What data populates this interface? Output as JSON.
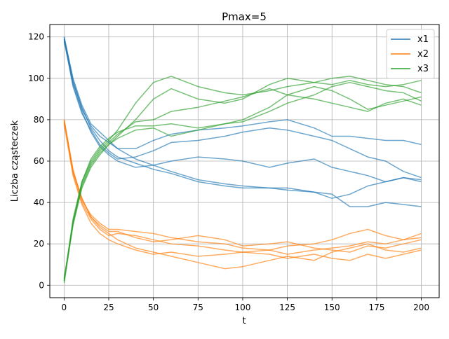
{
  "chart_data": {
    "type": "line",
    "title": "Pmax=5",
    "xlabel": "t",
    "ylabel": "Liczba cząsteczek",
    "xlim": [
      -8,
      210
    ],
    "ylim": [
      -6,
      126
    ],
    "xticks": [
      0,
      25,
      50,
      75,
      100,
      125,
      150,
      175,
      200
    ],
    "yticks": [
      0,
      20,
      40,
      60,
      80,
      100,
      120
    ],
    "grid": true,
    "legend_position": "top-right",
    "legend": [
      "x1",
      "x2",
      "x3"
    ],
    "colors": {
      "x1": "#1f77b4",
      "x2": "#ff7f0e",
      "x3": "#2ca02c"
    },
    "series": [
      {
        "name": "x1",
        "color": "#1f77b4",
        "runs": [
          {
            "x": [
              0,
              5,
              10,
              15,
              20,
              25,
              30,
              40,
              50,
              60,
              75,
              90,
              100,
              115,
              125,
              140,
              150,
              160,
              170,
              180,
              190,
              200
            ],
            "y": [
              120,
              100,
              87,
              78,
              74,
              70,
              66,
              61,
              58,
              55,
              51,
              49,
              48,
              47,
              47,
              45,
              42,
              44,
              48,
              50,
              52,
              51
            ]
          },
          {
            "x": [
              0,
              5,
              10,
              15,
              20,
              25,
              30,
              40,
              50,
              60,
              75,
              90,
              100,
              115,
              125,
              140,
              150,
              160,
              170,
              180,
              190,
              200
            ],
            "y": [
              119,
              98,
              86,
              76,
              70,
              65,
              62,
              59,
              56,
              54,
              50,
              48,
              47,
              47,
              46,
              45,
              44,
              38,
              38,
              40,
              39,
              38
            ]
          },
          {
            "x": [
              0,
              5,
              10,
              15,
              20,
              25,
              30,
              40,
              50,
              60,
              75,
              90,
              100,
              115,
              125,
              140,
              150,
              160,
              170,
              180,
              190,
              200
            ],
            "y": [
              118,
              97,
              84,
              74,
              67,
              63,
              60,
              57,
              58,
              60,
              62,
              61,
              60,
              57,
              59,
              61,
              57,
              55,
              53,
              50,
              52,
              50
            ]
          },
          {
            "x": [
              0,
              5,
              10,
              15,
              20,
              25,
              30,
              40,
              50,
              60,
              75,
              90,
              100,
              115,
              125,
              140,
              150,
              160,
              170,
              180,
              190,
              200
            ],
            "y": [
              120,
              99,
              85,
              77,
              72,
              69,
              66,
              66,
              70,
              73,
              75,
              76,
              77,
              79,
              80,
              76,
              72,
              72,
              71,
              70,
              70,
              68
            ]
          },
          {
            "x": [
              0,
              5,
              10,
              15,
              20,
              25,
              30,
              40,
              50,
              60,
              75,
              90,
              100,
              115,
              125,
              140,
              150,
              160,
              170,
              180,
              190,
              200
            ],
            "y": [
              119,
              96,
              83,
              75,
              68,
              64,
              61,
              62,
              65,
              69,
              70,
              72,
              74,
              76,
              75,
              72,
              70,
              66,
              62,
              60,
              55,
              52
            ]
          }
        ]
      },
      {
        "name": "x2",
        "color": "#ff7f0e",
        "runs": [
          {
            "x": [
              0,
              5,
              10,
              15,
              20,
              25,
              30,
              40,
              50,
              60,
              75,
              90,
              100,
              115,
              125,
              140,
              150,
              160,
              170,
              180,
              190,
              200
            ],
            "y": [
              80,
              55,
              42,
              33,
              28,
              25,
              22,
              18,
              16,
              14,
              11,
              8,
              9,
              12,
              14,
              12,
              16,
              18,
              20,
              17,
              16,
              18
            ]
          },
          {
            "x": [
              0,
              5,
              10,
              15,
              20,
              25,
              30,
              40,
              50,
              60,
              75,
              90,
              100,
              115,
              125,
              140,
              150,
              160,
              170,
              180,
              190,
              200
            ],
            "y": [
              79,
              54,
              40,
              32,
              27,
              24,
              25,
              24,
              22,
              20,
              19,
              17,
              16,
              17,
              15,
              17,
              18,
              19,
              21,
              20,
              22,
              23
            ]
          },
          {
            "x": [
              0,
              5,
              10,
              15,
              20,
              25,
              30,
              40,
              50,
              60,
              75,
              90,
              100,
              115,
              125,
              140,
              150,
              160,
              170,
              180,
              190,
              200
            ],
            "y": [
              80,
              56,
              41,
              34,
              30,
              27,
              27,
              26,
              25,
              23,
              21,
              20,
              18,
              17,
              19,
              20,
              22,
              25,
              27,
              24,
              22,
              25
            ]
          },
          {
            "x": [
              0,
              5,
              10,
              15,
              20,
              25,
              30,
              40,
              50,
              60,
              75,
              90,
              100,
              115,
              125,
              140,
              150,
              160,
              170,
              180,
              190,
              200
            ],
            "y": [
              78,
              53,
              39,
              30,
              25,
              22,
              20,
              17,
              15,
              16,
              14,
              15,
              16,
              15,
              13,
              15,
              13,
              12,
              15,
              13,
              15,
              17
            ]
          },
          {
            "x": [
              0,
              5,
              10,
              15,
              20,
              25,
              30,
              40,
              50,
              60,
              75,
              90,
              100,
              115,
              125,
              140,
              150,
              160,
              170,
              180,
              190,
              200
            ],
            "y": [
              80,
              55,
              42,
              33,
              29,
              26,
              26,
              23,
              21,
              22,
              24,
              22,
              19,
              20,
              21,
              18,
              17,
              16,
              19,
              18,
              20,
              22
            ]
          }
        ]
      },
      {
        "name": "x3",
        "color": "#2ca02c",
        "runs": [
          {
            "x": [
              0,
              5,
              10,
              15,
              20,
              25,
              30,
              40,
              50,
              60,
              75,
              90,
              100,
              115,
              125,
              140,
              150,
              160,
              170,
              180,
              190,
              200
            ],
            "y": [
              2,
              32,
              50,
              60,
              66,
              70,
              75,
              88,
              98,
              101,
              96,
              93,
              92,
              94,
              96,
              98,
              100,
              101,
              99,
              97,
              96,
              93
            ]
          },
          {
            "x": [
              0,
              5,
              10,
              15,
              20,
              25,
              30,
              40,
              50,
              60,
              75,
              90,
              100,
              115,
              125,
              140,
              150,
              160,
              170,
              180,
              190,
              200
            ],
            "y": [
              3,
              30,
              48,
              58,
              64,
              68,
              72,
              80,
              90,
              95,
              90,
              88,
              90,
              97,
              100,
              98,
              97,
              99,
              97,
              96,
              97,
              99
            ]
          },
          {
            "x": [
              0,
              5,
              10,
              15,
              20,
              25,
              30,
              40,
              50,
              60,
              75,
              90,
              100,
              115,
              125,
              140,
              150,
              160,
              170,
              180,
              190,
              200
            ],
            "y": [
              2,
              31,
              49,
              59,
              65,
              69,
              73,
              79,
              80,
              84,
              86,
              89,
              91,
              95,
              92,
              90,
              88,
              86,
              84,
              88,
              90,
              87
            ]
          },
          {
            "x": [
              0,
              5,
              10,
              15,
              20,
              25,
              30,
              40,
              50,
              60,
              75,
              90,
              100,
              115,
              125,
              140,
              150,
              160,
              170,
              180,
              190,
              200
            ],
            "y": [
              1,
              29,
              47,
              57,
              63,
              68,
              71,
              75,
              76,
              72,
              75,
              78,
              80,
              86,
              92,
              96,
              94,
              90,
              85,
              87,
              89,
              91
            ]
          },
          {
            "x": [
              0,
              5,
              10,
              15,
              20,
              25,
              30,
              40,
              50,
              60,
              75,
              90,
              100,
              115,
              125,
              140,
              150,
              160,
              170,
              180,
              190,
              200
            ],
            "y": [
              3,
              30,
              50,
              61,
              67,
              71,
              74,
              77,
              77,
              78,
              76,
              78,
              79,
              84,
              88,
              92,
              96,
              98,
              96,
              94,
              93,
              89
            ]
          }
        ]
      }
    ]
  }
}
